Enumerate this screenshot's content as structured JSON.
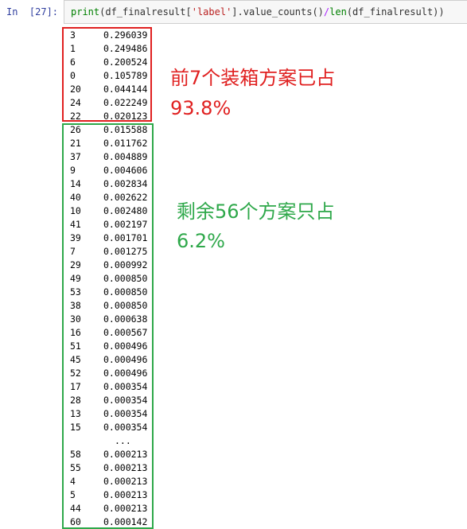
{
  "cell": {
    "prompt": "In  [27]:",
    "code_parts": [
      "print",
      "(df_finalresult[",
      "'label'",
      "].value_counts()",
      "/",
      "len",
      "(df_finalresult))"
    ]
  },
  "rows_top": [
    {
      "k": "3",
      "v": "0.296039"
    },
    {
      "k": "1",
      "v": "0.249486"
    },
    {
      "k": "6",
      "v": "0.200524"
    },
    {
      "k": "0",
      "v": "0.105789"
    },
    {
      "k": "20",
      "v": "0.044144"
    },
    {
      "k": "24",
      "v": "0.022249"
    },
    {
      "k": "22",
      "v": "0.020123"
    }
  ],
  "rows_rest": [
    {
      "k": "26",
      "v": "0.015588"
    },
    {
      "k": "21",
      "v": "0.011762"
    },
    {
      "k": "37",
      "v": "0.004889"
    },
    {
      "k": "9",
      "v": "0.004606"
    },
    {
      "k": "14",
      "v": "0.002834"
    },
    {
      "k": "40",
      "v": "0.002622"
    },
    {
      "k": "10",
      "v": "0.002480"
    },
    {
      "k": "41",
      "v": "0.002197"
    },
    {
      "k": "39",
      "v": "0.001701"
    },
    {
      "k": "7",
      "v": "0.001275"
    },
    {
      "k": "29",
      "v": "0.000992"
    },
    {
      "k": "49",
      "v": "0.000850"
    },
    {
      "k": "53",
      "v": "0.000850"
    },
    {
      "k": "38",
      "v": "0.000850"
    },
    {
      "k": "30",
      "v": "0.000638"
    },
    {
      "k": "16",
      "v": "0.000567"
    },
    {
      "k": "51",
      "v": "0.000496"
    },
    {
      "k": "45",
      "v": "0.000496"
    },
    {
      "k": "52",
      "v": "0.000496"
    },
    {
      "k": "17",
      "v": "0.000354"
    },
    {
      "k": "28",
      "v": "0.000354"
    },
    {
      "k": "13",
      "v": "0.000354"
    },
    {
      "k": "15",
      "v": "0.000354"
    }
  ],
  "ellipsis": "...",
  "rows_tail": [
    {
      "k": "58",
      "v": "0.000213"
    },
    {
      "k": "55",
      "v": "0.000213"
    },
    {
      "k": "4",
      "v": "0.000213"
    },
    {
      "k": "5",
      "v": "0.000213"
    },
    {
      "k": "44",
      "v": "0.000213"
    },
    {
      "k": "60",
      "v": "0.000142"
    }
  ],
  "annotations": {
    "red_line1": "前7个装箱方案已占",
    "red_line2": "93.8%",
    "green_line1": "剩余56个方案只占",
    "green_line2": "6.2%"
  },
  "colors": {
    "red": "#e02020",
    "green": "#2ea84a",
    "prompt": "#303f9f"
  }
}
